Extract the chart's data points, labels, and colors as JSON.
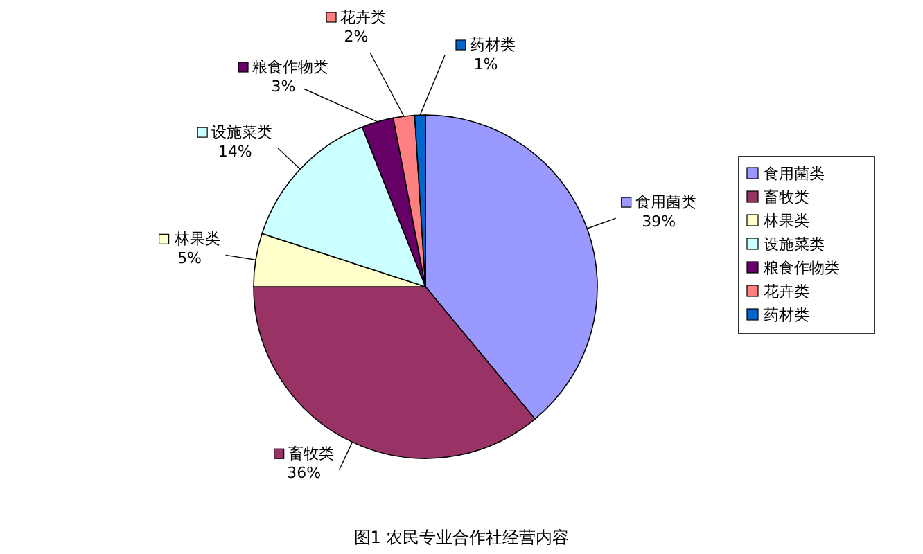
{
  "chart_data": {
    "type": "pie",
    "title": "图1 农民专业合作社经营内容",
    "categories": [
      "食用菌类",
      "畜牧类",
      "林果类",
      "设施菜类",
      "粮食作物类",
      "花卉类",
      "药材类"
    ],
    "values": [
      39,
      36,
      5,
      14,
      3,
      2,
      1
    ],
    "colors": [
      "#9999ff",
      "#993366",
      "#ffffcc",
      "#ccffff",
      "#660066",
      "#ff8080",
      "#0066cc"
    ],
    "value_labels": [
      "39%",
      "36%",
      "5%",
      "14%",
      "3%",
      "2%",
      "1%"
    ],
    "legend": "right"
  }
}
